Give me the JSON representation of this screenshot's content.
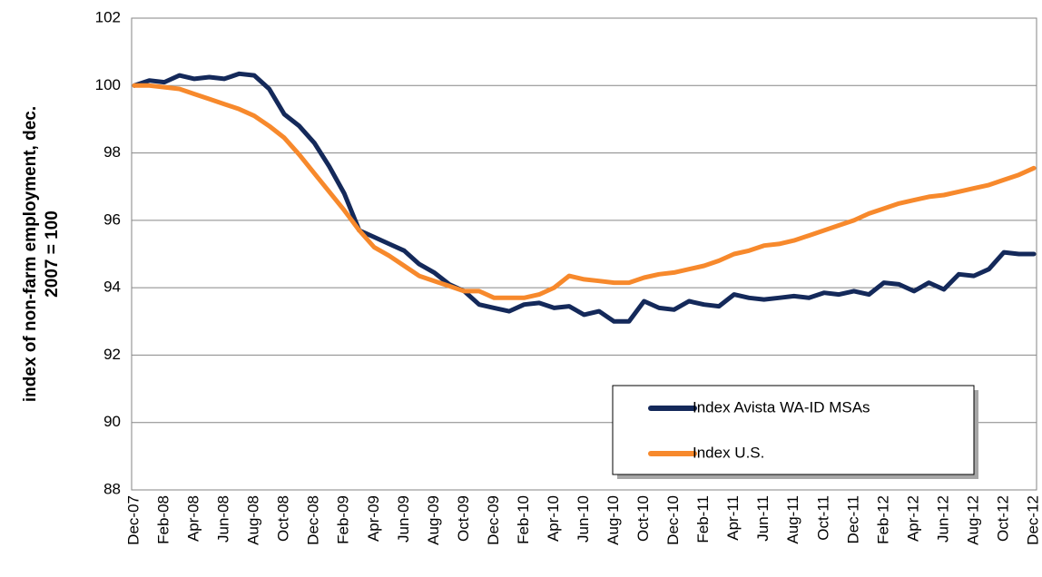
{
  "chart_data": {
    "type": "line",
    "y_label": [
      "index of non-farm employment, dec.",
      "2007 = 100"
    ],
    "categories": [
      "Dec-07",
      null,
      "Feb-08",
      null,
      "Apr-08",
      null,
      "Jun-08",
      null,
      "Aug-08",
      null,
      "Oct-08",
      null,
      "Dec-08",
      null,
      "Feb-09",
      null,
      "Apr-09",
      null,
      "Jun-09",
      null,
      "Aug-09",
      null,
      "Oct-09",
      null,
      "Dec-09",
      null,
      "Feb-10",
      null,
      "Apr-10",
      null,
      "Jun-10",
      null,
      "Aug-10",
      null,
      "Oct-10",
      null,
      "Dec-10",
      null,
      "Feb-11",
      null,
      "Apr-11",
      null,
      "Jun-11",
      null,
      "Aug-11",
      null,
      "Oct-11",
      null,
      "Dec-11",
      null,
      "Feb-12",
      null,
      "Apr-12",
      null,
      "Jun-12",
      null,
      "Aug-12",
      null,
      "Oct-12",
      null,
      "Dec-12"
    ],
    "series": [
      {
        "name": "Index Avista WA-ID MSAs",
        "color": "#14295a",
        "values": [
          100,
          100.15,
          100.1,
          100.3,
          100.2,
          100.25,
          100.2,
          100.35,
          100.3,
          99.9,
          99.15,
          98.8,
          98.3,
          97.6,
          96.8,
          95.7,
          95.5,
          95.3,
          95.1,
          94.7,
          94.45,
          94.1,
          93.9,
          93.5,
          93.4,
          93.3,
          93.5,
          93.55,
          93.4,
          93.45,
          93.2,
          93.3,
          93.0,
          93.0,
          93.6,
          93.4,
          93.35,
          93.6,
          93.5,
          93.45,
          93.8,
          93.7,
          93.65,
          93.7,
          93.75,
          93.7,
          93.85,
          93.8,
          93.9,
          93.8,
          94.15,
          94.1,
          93.9,
          94.15,
          93.95,
          94.4,
          94.35,
          94.55,
          95.05,
          95.0,
          95.0
        ]
      },
      {
        "name": "Index U.S.",
        "color": "#f7892c",
        "values": [
          100,
          100,
          99.95,
          99.9,
          99.75,
          99.6,
          99.45,
          99.3,
          99.1,
          98.8,
          98.45,
          97.95,
          97.4,
          96.85,
          96.3,
          95.7,
          95.2,
          94.95,
          94.65,
          94.35,
          94.2,
          94.05,
          93.9,
          93.9,
          93.7,
          93.7,
          93.7,
          93.8,
          94.0,
          94.35,
          94.25,
          94.2,
          94.15,
          94.15,
          94.3,
          94.4,
          94.45,
          94.55,
          94.65,
          94.8,
          95.0,
          95.1,
          95.25,
          95.3,
          95.4,
          95.55,
          95.7,
          95.85,
          96.0,
          96.2,
          96.35,
          96.5,
          96.6,
          96.7,
          96.75,
          96.85,
          96.95,
          97.05,
          97.2,
          97.35,
          97.55
        ]
      }
    ],
    "ylim": [
      88,
      102
    ],
    "yticks": [
      88,
      90,
      92,
      94,
      96,
      98,
      100,
      102
    ],
    "grid": true,
    "legend": "lower right"
  }
}
